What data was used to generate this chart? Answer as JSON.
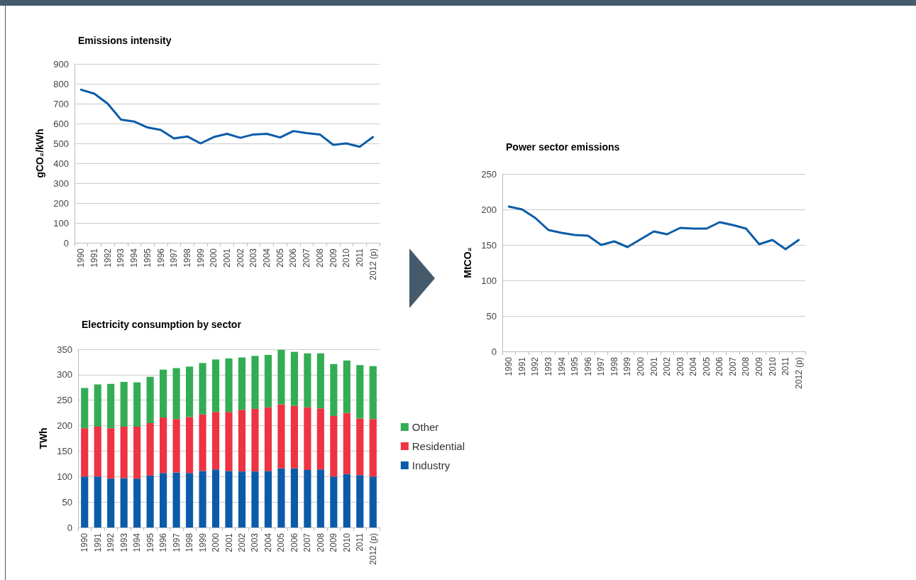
{
  "chart_data": [
    {
      "type": "line",
      "title": "Emissions intensity",
      "ylabel": "gCO₂/kWh",
      "categories": [
        "1990",
        "1991",
        "1992",
        "1993",
        "1994",
        "1995",
        "1996",
        "1997",
        "1998",
        "1999",
        "2000",
        "2001",
        "2002",
        "2003",
        "2004",
        "2005",
        "2006",
        "2007",
        "2008",
        "2009",
        "2010",
        "2011",
        "2012 (p)"
      ],
      "series": [
        {
          "color": "#0b5ca8",
          "values": [
            770,
            750,
            700,
            620,
            610,
            580,
            568,
            525,
            535,
            500,
            532,
            548,
            528,
            545,
            548,
            530,
            562,
            552,
            545,
            493,
            500,
            483,
            532
          ]
        }
      ],
      "ylim": [
        0,
        900
      ],
      "yticks": [
        0,
        100,
        200,
        300,
        400,
        500,
        600,
        700,
        800,
        900
      ],
      "grid": "y",
      "marker": "none",
      "line_style": "solid"
    },
    {
      "type": "bar",
      "title": "Electricity consumption by sector",
      "ylabel": "TWh",
      "stacked": true,
      "legend": "right",
      "categories": [
        "1990",
        "1991",
        "1992",
        "1993",
        "1994",
        "1995",
        "1996",
        "1997",
        "1998",
        "1999",
        "2000",
        "2001",
        "2002",
        "2003",
        "2004",
        "2005",
        "2006",
        "2007",
        "2008",
        "2009",
        "2010",
        "2011",
        "2012 (p)"
      ],
      "series": [
        {
          "name": "Industry",
          "color": "#0b5ba8",
          "values": [
            100,
            100,
            96,
            97,
            96,
            102,
            107,
            108,
            107,
            111,
            114,
            111,
            110,
            110,
            111,
            116,
            116,
            113,
            114,
            100,
            105,
            103,
            100
          ]
        },
        {
          "name": "Residential",
          "color": "#ee3342",
          "values": [
            95,
            98,
            99,
            101,
            102,
            103,
            109,
            105,
            110,
            111,
            113,
            116,
            121,
            123,
            125,
            126,
            123,
            123,
            120,
            119,
            120,
            111,
            113
          ]
        },
        {
          "name": "Other",
          "color": "#33ad55",
          "values": [
            79,
            83,
            87,
            88,
            87,
            91,
            94,
            100,
            99,
            101,
            103,
            105,
            103,
            104,
            103,
            107,
            106,
            106,
            108,
            102,
            103,
            105,
            104
          ]
        }
      ],
      "ylim": [
        0,
        350
      ],
      "yticks": [
        0,
        50,
        100,
        150,
        200,
        250,
        300,
        350
      ],
      "grid": "y"
    },
    {
      "type": "line",
      "title": "Power sector emissions",
      "ylabel": "MtCO₂",
      "categories": [
        "1990",
        "1991",
        "1992",
        "1993",
        "1994",
        "1995",
        "1996",
        "1997",
        "1998",
        "1999",
        "2000",
        "2001",
        "2002",
        "2003",
        "2004",
        "2005",
        "2006",
        "2007",
        "2008",
        "2009",
        "2010",
        "2011",
        "2012 (p)"
      ],
      "series": [
        {
          "color": "#0b5ca8",
          "values": [
            204,
            200,
            188,
            171,
            167,
            164,
            163,
            150,
            155,
            147,
            158,
            169,
            165,
            174,
            173,
            173,
            182,
            178,
            173,
            151,
            157,
            144,
            157
          ]
        }
      ],
      "ylim": [
        0,
        250
      ],
      "yticks": [
        0,
        50,
        100,
        150,
        200,
        250
      ],
      "grid": "y",
      "marker": "none",
      "line_style": "solid"
    }
  ]
}
